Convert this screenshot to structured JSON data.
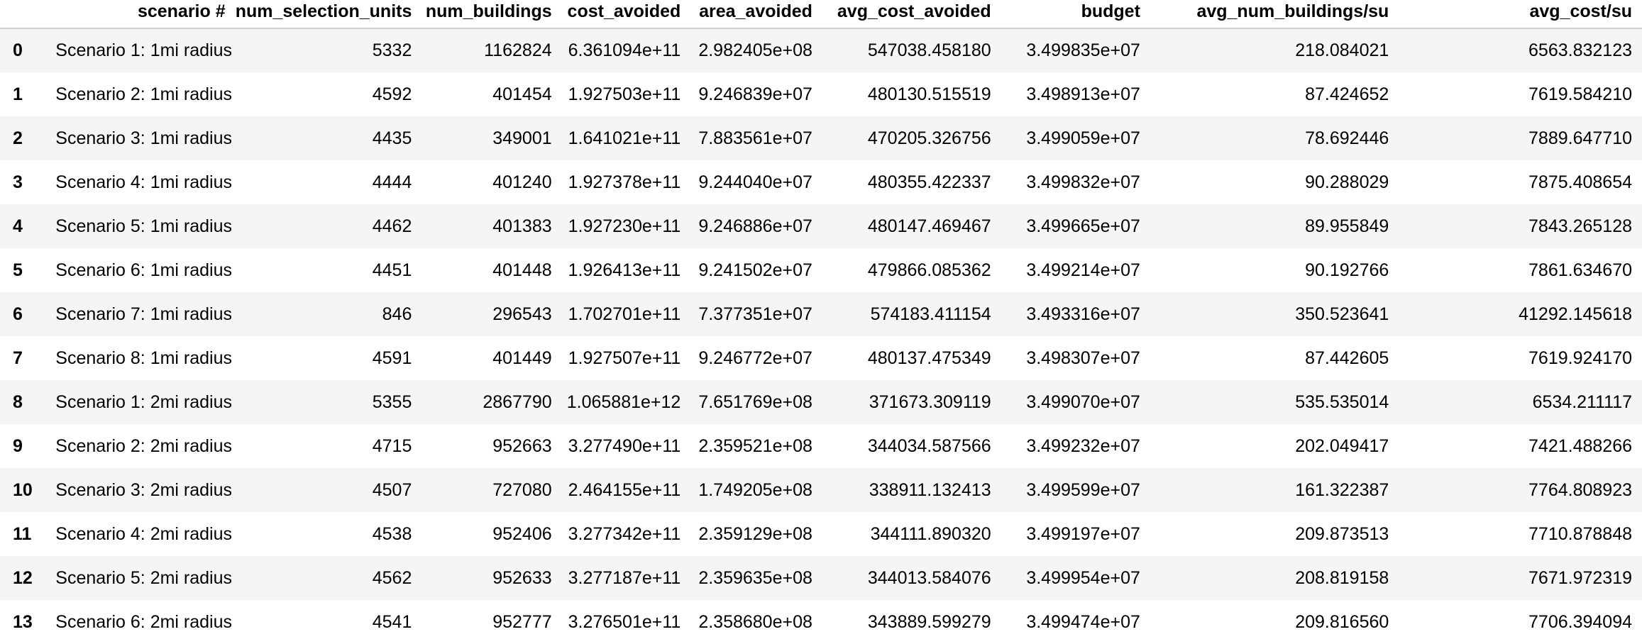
{
  "table": {
    "index_header": "",
    "columns": [
      "scenario #",
      "num_selection_units",
      "num_buildings",
      "cost_avoided",
      "area_avoided",
      "avg_cost_avoided",
      "budget",
      "avg_num_buildings/su",
      "avg_cost/su"
    ],
    "rows": [
      {
        "index": "0",
        "cells": [
          "Scenario 1: 1mi radius",
          "5332",
          "1162824",
          "6.361094e+11",
          "2.982405e+08",
          "547038.458180",
          "3.499835e+07",
          "218.084021",
          "6563.832123"
        ]
      },
      {
        "index": "1",
        "cells": [
          "Scenario 2: 1mi radius",
          "4592",
          "401454",
          "1.927503e+11",
          "9.246839e+07",
          "480130.515519",
          "3.498913e+07",
          "87.424652",
          "7619.584210"
        ]
      },
      {
        "index": "2",
        "cells": [
          "Scenario 3: 1mi radius",
          "4435",
          "349001",
          "1.641021e+11",
          "7.883561e+07",
          "470205.326756",
          "3.499059e+07",
          "78.692446",
          "7889.647710"
        ]
      },
      {
        "index": "3",
        "cells": [
          "Scenario 4: 1mi radius",
          "4444",
          "401240",
          "1.927378e+11",
          "9.244040e+07",
          "480355.422337",
          "3.499832e+07",
          "90.288029",
          "7875.408654"
        ]
      },
      {
        "index": "4",
        "cells": [
          "Scenario 5: 1mi radius",
          "4462",
          "401383",
          "1.927230e+11",
          "9.246886e+07",
          "480147.469467",
          "3.499665e+07",
          "89.955849",
          "7843.265128"
        ]
      },
      {
        "index": "5",
        "cells": [
          "Scenario 6: 1mi radius",
          "4451",
          "401448",
          "1.926413e+11",
          "9.241502e+07",
          "479866.085362",
          "3.499214e+07",
          "90.192766",
          "7861.634670"
        ]
      },
      {
        "index": "6",
        "cells": [
          "Scenario 7: 1mi radius",
          "846",
          "296543",
          "1.702701e+11",
          "7.377351e+07",
          "574183.411154",
          "3.493316e+07",
          "350.523641",
          "41292.145618"
        ]
      },
      {
        "index": "7",
        "cells": [
          "Scenario 8: 1mi radius",
          "4591",
          "401449",
          "1.927507e+11",
          "9.246772e+07",
          "480137.475349",
          "3.498307e+07",
          "87.442605",
          "7619.924170"
        ]
      },
      {
        "index": "8",
        "cells": [
          "Scenario 1: 2mi radius",
          "5355",
          "2867790",
          "1.065881e+12",
          "7.651769e+08",
          "371673.309119",
          "3.499070e+07",
          "535.535014",
          "6534.211117"
        ]
      },
      {
        "index": "9",
        "cells": [
          "Scenario 2: 2mi radius",
          "4715",
          "952663",
          "3.277490e+11",
          "2.359521e+08",
          "344034.587566",
          "3.499232e+07",
          "202.049417",
          "7421.488266"
        ]
      },
      {
        "index": "10",
        "cells": [
          "Scenario 3: 2mi radius",
          "4507",
          "727080",
          "2.464155e+11",
          "1.749205e+08",
          "338911.132413",
          "3.499599e+07",
          "161.322387",
          "7764.808923"
        ]
      },
      {
        "index": "11",
        "cells": [
          "Scenario 4: 2mi radius",
          "4538",
          "952406",
          "3.277342e+11",
          "2.359129e+08",
          "344111.890320",
          "3.499197e+07",
          "209.873513",
          "7710.878848"
        ]
      },
      {
        "index": "12",
        "cells": [
          "Scenario 5: 2mi radius",
          "4562",
          "952633",
          "3.277187e+11",
          "2.359635e+08",
          "344013.584076",
          "3.499954e+07",
          "208.819158",
          "7671.972319"
        ]
      },
      {
        "index": "13",
        "cells": [
          "Scenario 6: 2mi radius",
          "4541",
          "952777",
          "3.276501e+11",
          "2.358680e+08",
          "343889.599279",
          "3.499474e+07",
          "209.816560",
          "7706.394094"
        ]
      }
    ]
  }
}
